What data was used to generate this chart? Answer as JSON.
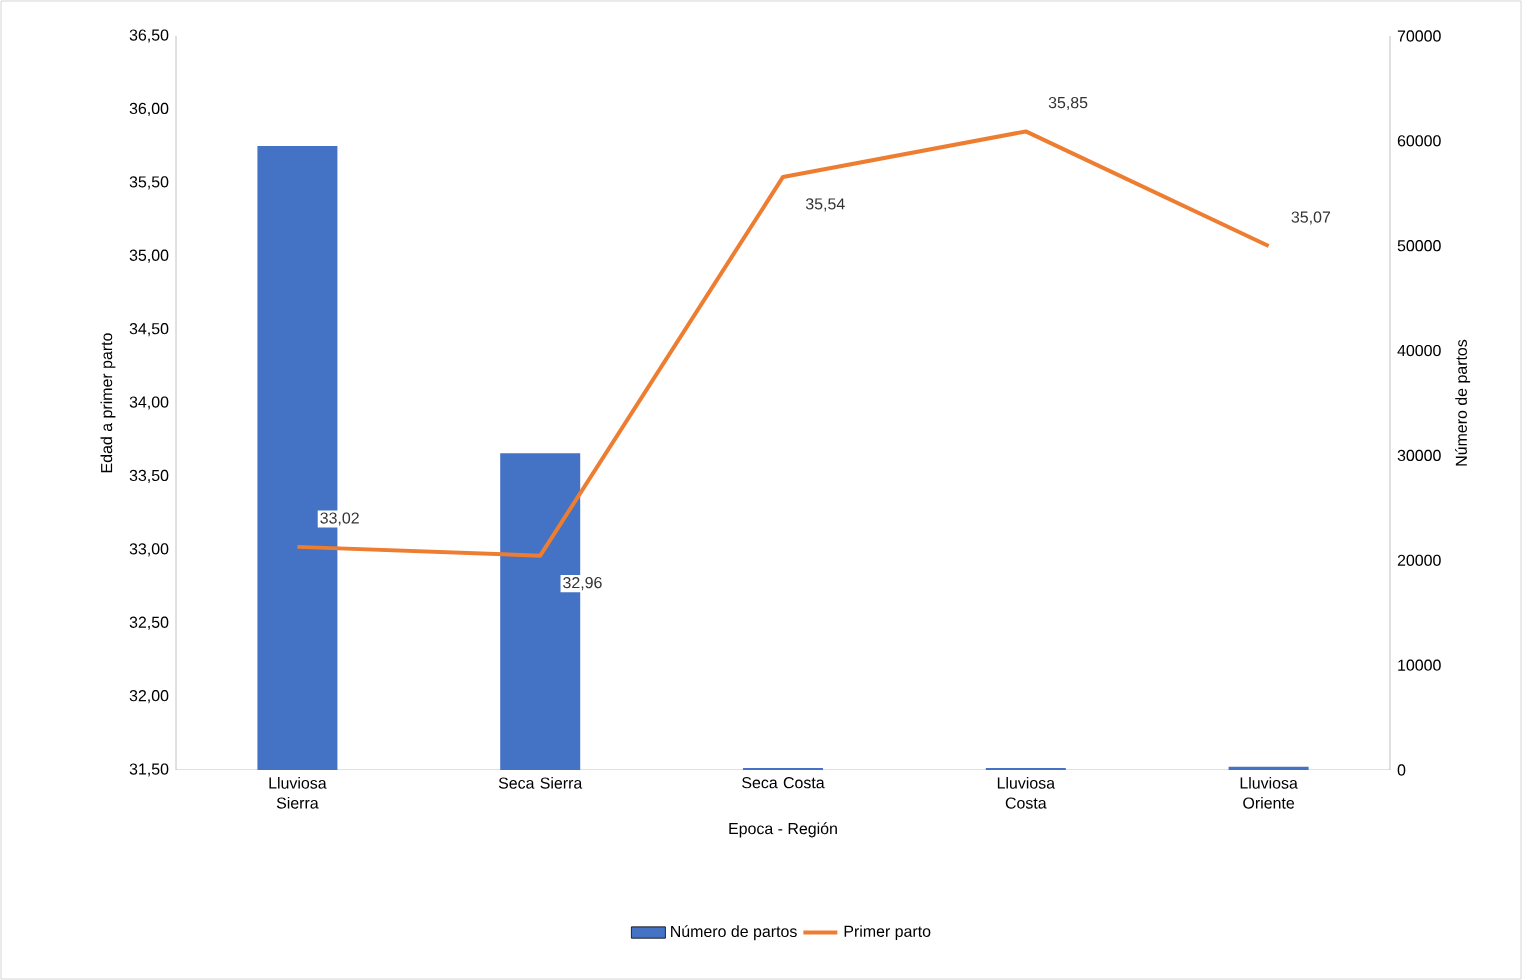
{
  "chart_data": {
    "type": "bar",
    "xlabel": "Epoca - Región",
    "ylabel": "Edad a primer parto",
    "y2label": "Número de partos",
    "categories": [
      "Lluviosa Sierra",
      "Seca Sierra",
      "Seca Costa",
      "Lluviosa Costa",
      "Lluviosa Oriente"
    ],
    "series": [
      {
        "name": "Número de partos",
        "type": "bar",
        "axis": "y2",
        "color": "#4472c4",
        "values": [
          59500,
          30200,
          200,
          200,
          300
        ]
      },
      {
        "name": "Primer parto",
        "type": "line",
        "axis": "y",
        "color": "#ed7d31",
        "marker": "none",
        "values": [
          33.02,
          32.96,
          35.54,
          35.85,
          35.07
        ],
        "value_labels": [
          "33,02",
          "32,96",
          "35,54",
          "35,85",
          "35,07"
        ]
      }
    ],
    "ylim": [
      31.5,
      36.5
    ],
    "yticks": [
      {
        "value": 31.5,
        "label": "31,50"
      },
      {
        "value": 32.0,
        "label": "32,00"
      },
      {
        "value": 32.5,
        "label": "32,50"
      },
      {
        "value": 33.0,
        "label": "33,00"
      },
      {
        "value": 33.5,
        "label": "33,50"
      },
      {
        "value": 34.0,
        "label": "34,00"
      },
      {
        "value": 34.5,
        "label": "34,50"
      },
      {
        "value": 35.0,
        "label": "35,00"
      },
      {
        "value": 35.5,
        "label": "35,50"
      },
      {
        "value": 36.0,
        "label": "36,00"
      },
      {
        "value": 36.5,
        "label": "36,50"
      }
    ],
    "y2lim": [
      0,
      70000
    ],
    "y2ticks": [
      0,
      10000,
      20000,
      30000,
      40000,
      50000,
      60000,
      70000
    ],
    "grid": false,
    "legend": "bottom"
  }
}
